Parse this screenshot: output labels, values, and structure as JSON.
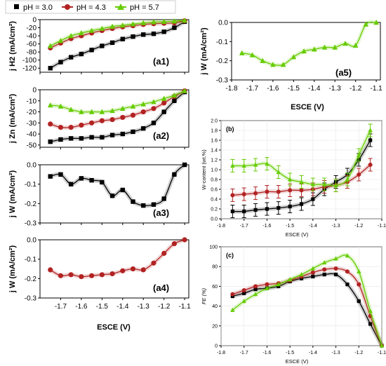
{
  "legend": {
    "items": [
      {
        "label": "pH = 3.0",
        "color": "#000000",
        "marker": "square"
      },
      {
        "label": "pH = 4.3",
        "color": "#b22222",
        "marker": "circle"
      },
      {
        "label": "pH = 5.7",
        "color": "#66cc00",
        "marker": "triangle"
      }
    ]
  },
  "colors": {
    "ph30": "#000000",
    "ph43": "#b22222",
    "ph57": "#66cc00"
  },
  "chart_data": [
    {
      "id": "a1",
      "panel_label": "(a1)",
      "type": "line",
      "ylabel": "j H2 (mA/cm²)",
      "ylim": [
        -130,
        0
      ],
      "yticks": [
        "0",
        "-20",
        "-40",
        "-60",
        "-80",
        "-100",
        "-120"
      ],
      "xlim": [
        -1.8,
        -1.08
      ],
      "xticks_shown": false,
      "series": [
        {
          "name": "pH = 3.0",
          "marker": "square",
          "color": "#000000",
          "x": [
            -1.75,
            -1.7,
            -1.65,
            -1.6,
            -1.55,
            -1.5,
            -1.45,
            -1.4,
            -1.35,
            -1.3,
            -1.25,
            -1.2,
            -1.15,
            -1.1
          ],
          "y": [
            -120,
            -105,
            -93,
            -85,
            -75,
            -65,
            -57,
            -48,
            -42,
            -37,
            -35,
            -30,
            -20,
            -5
          ]
        },
        {
          "name": "pH = 4.3",
          "marker": "circle",
          "color": "#b22222",
          "x": [
            -1.75,
            -1.7,
            -1.65,
            -1.6,
            -1.55,
            -1.5,
            -1.45,
            -1.4,
            -1.35,
            -1.3,
            -1.25,
            -1.2,
            -1.15,
            -1.1
          ],
          "y": [
            -70,
            -58,
            -47,
            -40,
            -33,
            -27,
            -22,
            -18,
            -15,
            -12,
            -10,
            -9,
            -8,
            -3
          ]
        },
        {
          "name": "pH = 5.7",
          "marker": "triangle",
          "color": "#66cc00",
          "x": [
            -1.75,
            -1.7,
            -1.65,
            -1.6,
            -1.55,
            -1.5,
            -1.45,
            -1.4,
            -1.35,
            -1.3,
            -1.25,
            -1.2,
            -1.15,
            -1.1
          ],
          "y": [
            -65,
            -52,
            -40,
            -33,
            -27,
            -22,
            -17,
            -14,
            -11,
            -8,
            -6,
            -5,
            -4,
            -2
          ]
        }
      ]
    },
    {
      "id": "a2",
      "panel_label": "(a2)",
      "type": "line",
      "ylabel": "j Zn (mA/cm²)",
      "ylim": [
        -52,
        0
      ],
      "yticks": [
        "0",
        "-10",
        "-20",
        "-30",
        "-40",
        "-50"
      ],
      "xlim": [
        -1.8,
        -1.08
      ],
      "xticks_shown": false,
      "series": [
        {
          "name": "pH = 3.0",
          "marker": "square",
          "color": "#000000",
          "x": [
            -1.75,
            -1.7,
            -1.65,
            -1.6,
            -1.55,
            -1.5,
            -1.45,
            -1.4,
            -1.35,
            -1.3,
            -1.25,
            -1.2,
            -1.15,
            -1.1
          ],
          "y": [
            -47,
            -45,
            -44,
            -44,
            -43,
            -43,
            -41,
            -40,
            -38,
            -35,
            -30,
            -20,
            -10,
            -2
          ]
        },
        {
          "name": "pH = 4.3",
          "marker": "circle",
          "color": "#b22222",
          "x": [
            -1.75,
            -1.7,
            -1.65,
            -1.6,
            -1.55,
            -1.5,
            -1.45,
            -1.4,
            -1.35,
            -1.3,
            -1.25,
            -1.2,
            -1.15,
            -1.1
          ],
          "y": [
            -31,
            -34,
            -34,
            -32,
            -30,
            -28,
            -27,
            -25,
            -23,
            -20,
            -17,
            -12,
            -6,
            -1
          ]
        },
        {
          "name": "pH = 5.7",
          "marker": "triangle",
          "color": "#66cc00",
          "x": [
            -1.75,
            -1.7,
            -1.65,
            -1.6,
            -1.55,
            -1.5,
            -1.45,
            -1.4,
            -1.35,
            -1.3,
            -1.25,
            -1.2,
            -1.15,
            -1.1
          ],
          "y": [
            -14,
            -15,
            -18,
            -20,
            -20,
            -20,
            -19,
            -17,
            -15,
            -13,
            -11,
            -8,
            -5,
            -1
          ]
        }
      ]
    },
    {
      "id": "a3",
      "panel_label": "(a3)",
      "type": "line",
      "ylabel": "j W (mA/cm²)",
      "ylim": [
        -0.3,
        0.0
      ],
      "yticks": [
        "0.0",
        "-0.1",
        "-0.2",
        "-0.3"
      ],
      "xlim": [
        -1.8,
        -1.08
      ],
      "xticks_shown": false,
      "series": [
        {
          "name": "pH = 3.0",
          "marker": "square",
          "color": "#000000",
          "x": [
            -1.75,
            -1.7,
            -1.65,
            -1.6,
            -1.55,
            -1.5,
            -1.45,
            -1.4,
            -1.35,
            -1.3,
            -1.25,
            -1.2,
            -1.15,
            -1.1
          ],
          "y": [
            -0.06,
            -0.05,
            -0.1,
            -0.07,
            -0.08,
            -0.09,
            -0.16,
            -0.13,
            -0.19,
            -0.21,
            -0.205,
            -0.175,
            -0.05,
            0.0
          ]
        }
      ]
    },
    {
      "id": "a4",
      "panel_label": "(a4)",
      "type": "line",
      "ylabel": "j W (mA/cm²)",
      "ylim": [
        -0.3,
        0.0
      ],
      "yticks": [
        "0.0",
        "-0.1",
        "-0.2",
        "-0.3"
      ],
      "xlim": [
        -1.8,
        -1.08
      ],
      "xlabel": "ESCE (V)",
      "xticks": [
        "-1.7",
        "-1.6",
        "-1.5",
        "-1.4",
        "-1.3",
        "-1.2",
        "-1.1"
      ],
      "series": [
        {
          "name": "pH = 4.3",
          "marker": "circle",
          "color": "#b22222",
          "x": [
            -1.75,
            -1.7,
            -1.65,
            -1.6,
            -1.55,
            -1.5,
            -1.45,
            -1.4,
            -1.35,
            -1.3,
            -1.25,
            -1.2,
            -1.15,
            -1.1
          ],
          "y": [
            -0.155,
            -0.185,
            -0.18,
            -0.19,
            -0.185,
            -0.18,
            -0.175,
            -0.16,
            -0.15,
            -0.155,
            -0.12,
            -0.07,
            -0.02,
            0.0
          ]
        }
      ]
    },
    {
      "id": "a5",
      "panel_label": "(a5)",
      "type": "line",
      "ylabel": "j W (mA/cm²)",
      "ylim": [
        -0.3,
        0.0
      ],
      "yticks": [
        "0.0",
        "-0.1",
        "-0.2",
        "-0.3"
      ],
      "xlim": [
        -1.8,
        -1.08
      ],
      "xlabel": "ESCE (V)",
      "xticks": [
        "-1.8",
        "-1.7",
        "-1.6",
        "-1.5",
        "-1.4",
        "-1.3",
        "-1.2",
        "-1.1"
      ],
      "series": [
        {
          "name": "pH = 5.7",
          "marker": "triangle",
          "color": "#66cc00",
          "x": [
            -1.75,
            -1.7,
            -1.65,
            -1.6,
            -1.55,
            -1.5,
            -1.45,
            -1.4,
            -1.35,
            -1.3,
            -1.25,
            -1.2,
            -1.15,
            -1.1
          ],
          "y": [
            -0.16,
            -0.17,
            -0.2,
            -0.22,
            -0.22,
            -0.18,
            -0.15,
            -0.14,
            -0.13,
            -0.13,
            -0.11,
            -0.12,
            -0.01,
            0.0
          ]
        }
      ]
    },
    {
      "id": "b",
      "panel_label": "(b)",
      "type": "line",
      "ylabel": "W-content (wt.%)",
      "ylim": [
        0.0,
        2.0
      ],
      "yticks": [
        "0.0",
        "0.2",
        "0.4",
        "0.6",
        "0.8",
        "1.0",
        "1.2",
        "1.4",
        "1.6",
        "1.8",
        "2.0"
      ],
      "xlim": [
        -1.8,
        -1.1
      ],
      "xlabel": "ESCE (V)",
      "xticks": [
        "-1.8",
        "-1.7",
        "-1.6",
        "-1.5",
        "-1.4",
        "-1.3",
        "-1.2",
        "-1.1"
      ],
      "series": [
        {
          "name": "pH = 3.0",
          "marker": "square",
          "color": "#000000",
          "x": [
            -1.75,
            -1.7,
            -1.65,
            -1.6,
            -1.55,
            -1.5,
            -1.45,
            -1.4,
            -1.35,
            -1.3,
            -1.25,
            -1.2,
            -1.15
          ],
          "y": [
            0.15,
            0.15,
            0.18,
            0.2,
            0.22,
            0.25,
            0.3,
            0.4,
            0.6,
            0.75,
            0.9,
            1.2,
            1.6
          ]
        },
        {
          "name": "pH = 4.3",
          "marker": "circle",
          "color": "#b22222",
          "x": [
            -1.75,
            -1.7,
            -1.65,
            -1.6,
            -1.55,
            -1.5,
            -1.45,
            -1.4,
            -1.35,
            -1.3,
            -1.25,
            -1.2,
            -1.15
          ],
          "y": [
            0.48,
            0.5,
            0.52,
            0.55,
            0.55,
            0.58,
            0.58,
            0.6,
            0.65,
            0.68,
            0.75,
            0.9,
            1.1
          ]
        },
        {
          "name": "pH = 5.7",
          "marker": "triangle",
          "color": "#66cc00",
          "x": [
            -1.75,
            -1.7,
            -1.65,
            -1.6,
            -1.55,
            -1.5,
            -1.45,
            -1.4,
            -1.35,
            -1.3,
            -1.25,
            -1.2,
            -1.15
          ],
          "y": [
            1.08,
            1.08,
            1.1,
            1.12,
            0.95,
            0.8,
            0.75,
            0.7,
            0.7,
            0.68,
            0.8,
            1.3,
            1.8
          ]
        }
      ]
    },
    {
      "id": "c",
      "panel_label": "(c)",
      "type": "line",
      "ylabel": "FE (%)",
      "ylim": [
        0,
        100
      ],
      "yticks": [
        "0",
        "20",
        "40",
        "60",
        "80",
        "100"
      ],
      "xlim": [
        -1.8,
        -1.1
      ],
      "xlabel": "ESCE (V)",
      "xticks": [
        "-1.8",
        "-1.7",
        "-1.6",
        "-1.5",
        "-1.4",
        "-1.3",
        "-1.2",
        "-1.1"
      ],
      "series": [
        {
          "name": "pH = 3.0",
          "marker": "square",
          "color": "#000000",
          "x": [
            -1.75,
            -1.7,
            -1.65,
            -1.6,
            -1.55,
            -1.5,
            -1.45,
            -1.4,
            -1.35,
            -1.3,
            -1.25,
            -1.2,
            -1.15,
            -1.1
          ],
          "y": [
            50,
            53,
            57,
            58,
            60,
            65,
            68,
            70,
            72,
            72,
            62,
            45,
            22,
            0
          ]
        },
        {
          "name": "pH = 4.3",
          "marker": "circle",
          "color": "#b22222",
          "x": [
            -1.75,
            -1.7,
            -1.65,
            -1.6,
            -1.55,
            -1.5,
            -1.45,
            -1.4,
            -1.35,
            -1.3,
            -1.25,
            -1.2,
            -1.15,
            -1.1
          ],
          "y": [
            52,
            56,
            60,
            62,
            63,
            66,
            70,
            74,
            77,
            78,
            75,
            62,
            30,
            0
          ]
        },
        {
          "name": "pH = 5.7",
          "marker": "triangle",
          "color": "#66cc00",
          "x": [
            -1.75,
            -1.7,
            -1.65,
            -1.6,
            -1.55,
            -1.5,
            -1.45,
            -1.4,
            -1.35,
            -1.3,
            -1.25,
            -1.2,
            -1.15,
            -1.1
          ],
          "y": [
            36,
            45,
            52,
            58,
            62,
            67,
            72,
            78,
            84,
            88,
            91,
            75,
            35,
            0
          ]
        }
      ]
    }
  ]
}
